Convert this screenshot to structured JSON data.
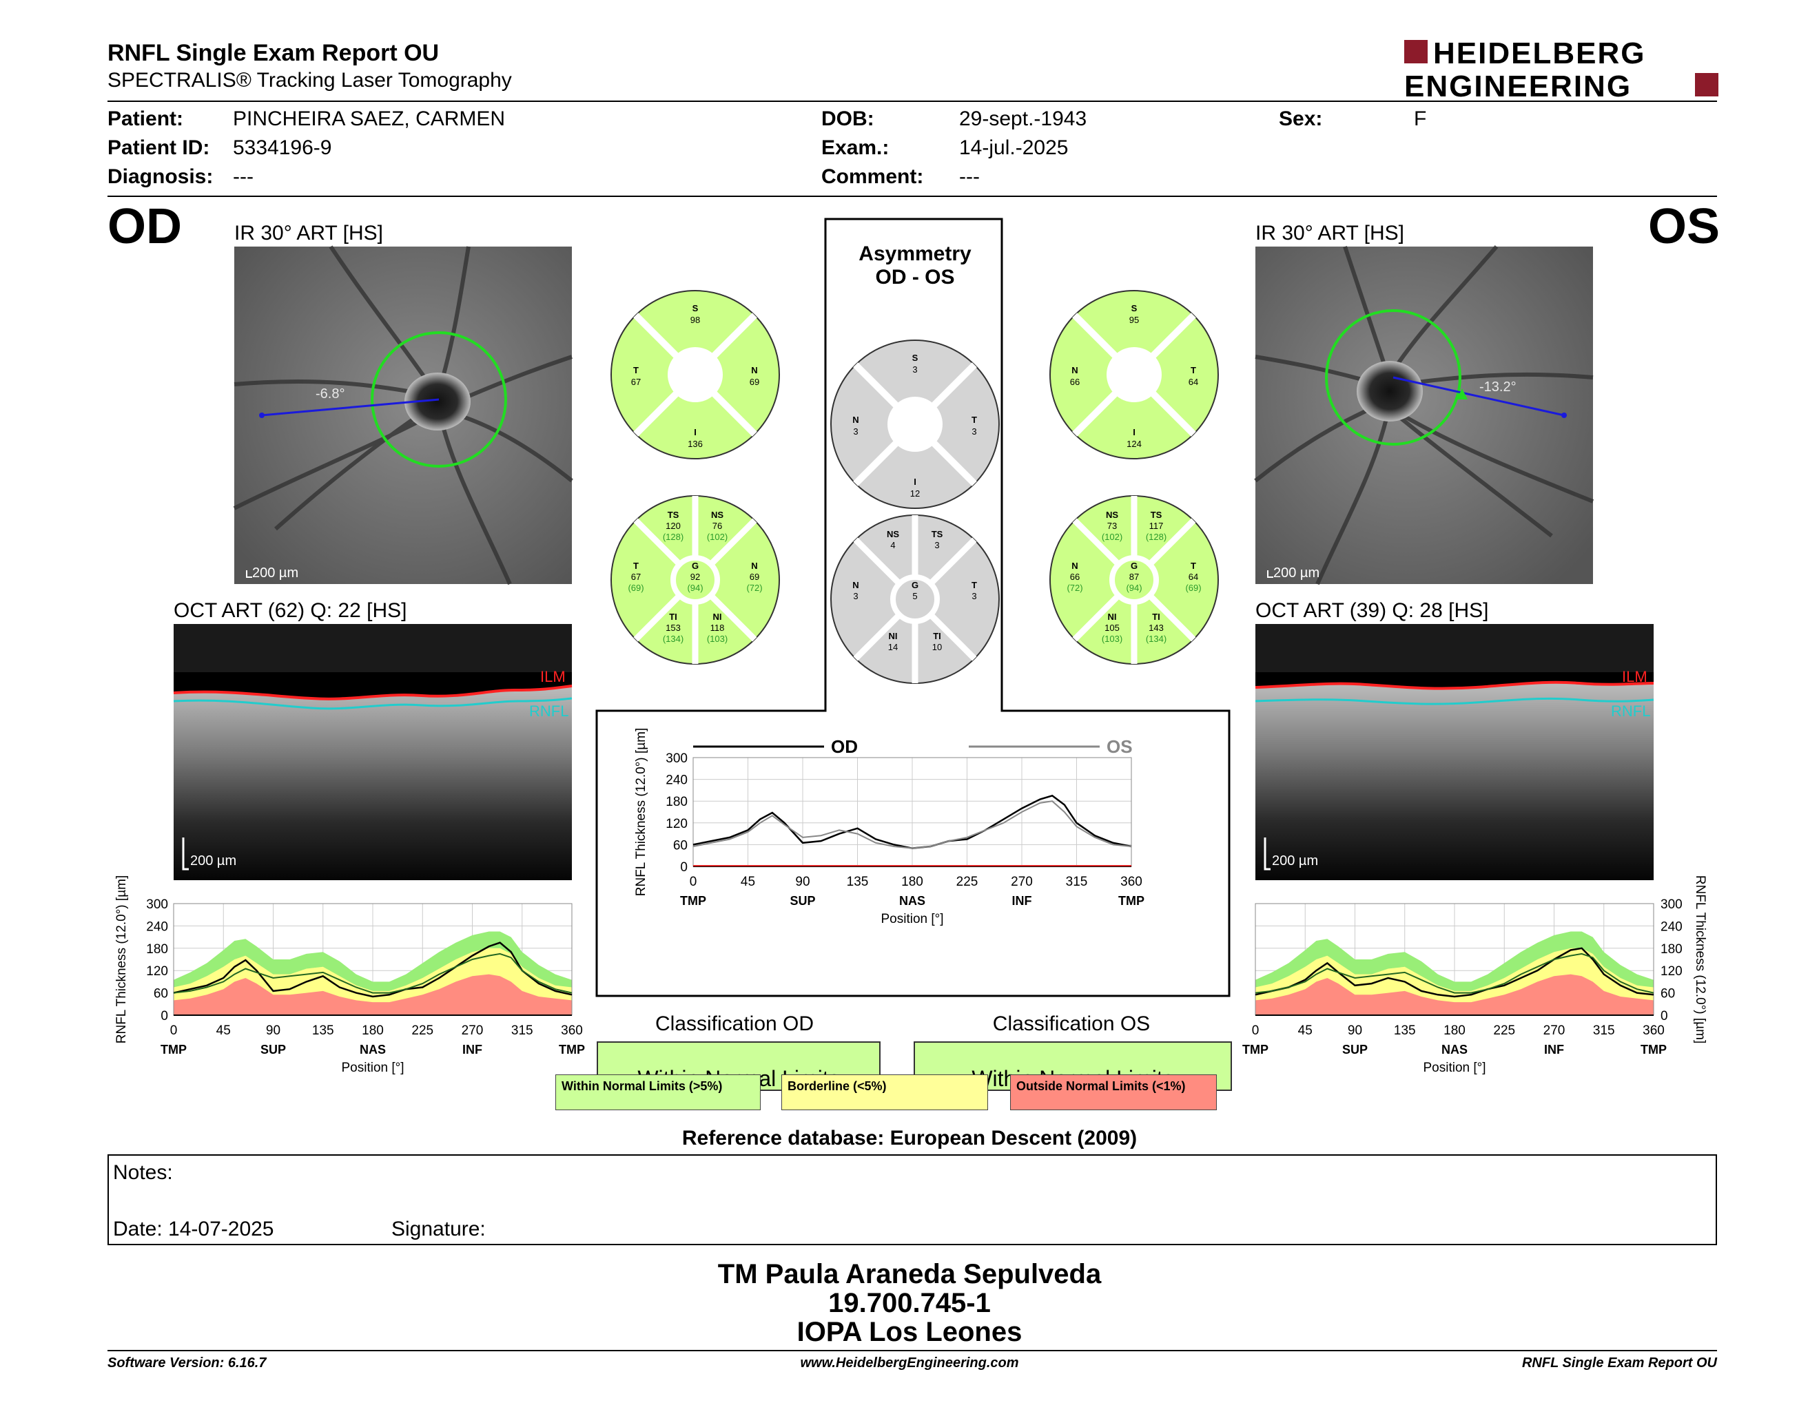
{
  "header": {
    "title": "RNFL Single Exam Report OU",
    "subtitle": "SPECTRALIS® Tracking Laser Tomography",
    "logo_line1": "HEIDELBERG",
    "logo_line2": "ENGINEERING"
  },
  "patient": {
    "name_label": "Patient:",
    "name": "PINCHEIRA SAEZ, CARMEN",
    "id_label": "Patient ID:",
    "id": "5334196-9",
    "diag_label": "Diagnosis:",
    "diag": "---",
    "dob_label": "DOB:",
    "dob": "29-sept.-1943",
    "exam_label": "Exam.:",
    "exam": "14-jul.-2025",
    "comment_label": "Comment:",
    "comment": "---",
    "sex_label": "Sex:",
    "sex": "F"
  },
  "od": {
    "eye": "OD",
    "ir_label": "IR 30° ART [HS]",
    "angle": "-6.8°",
    "scale": "200 µm",
    "oct_label": "OCT ART (62) Q: 22 [HS]",
    "ilm": "ILM",
    "rnfl": "RNFL",
    "oct_scale": "200 µm",
    "sectors6": {
      "S": "98",
      "T": "67",
      "N": "69",
      "I": "136"
    },
    "sectors_detail": {
      "TS": "120",
      "TS_ref": "(128)",
      "NS": "76",
      "NS_ref": "(102)",
      "T": "67",
      "T_ref": "(69)",
      "G": "92",
      "G_ref": "(94)",
      "N": "69",
      "N_ref": "(72)",
      "TI": "153",
      "TI_ref": "(134)",
      "NI": "118",
      "NI_ref": "(103)"
    },
    "classification_title": "Classification OD",
    "classification": "Within Normal Limits"
  },
  "os": {
    "eye": "OS",
    "ir_label": "IR 30° ART [HS]",
    "angle": "-13.2°",
    "scale": "200 µm",
    "oct_label": "OCT ART (39) Q: 28 [HS]",
    "ilm": "ILM",
    "rnfl": "RNFL",
    "oct_scale": "200 µm",
    "sectors6": {
      "S": "95",
      "N": "66",
      "T": "64",
      "I": "124"
    },
    "sectors_detail": {
      "NS": "73",
      "NS_ref": "(102)",
      "TS": "117",
      "TS_ref": "(128)",
      "N": "66",
      "N_ref": "(72)",
      "G": "87",
      "G_ref": "(94)",
      "T": "64",
      "T_ref": "(69)",
      "NI": "105",
      "NI_ref": "(103)",
      "TI": "143",
      "TI_ref": "(134)"
    },
    "classification_title": "Classification OS",
    "classification": "Within Normal Limits"
  },
  "asymmetry": {
    "title1": "Asymmetry",
    "title2": "OD - OS",
    "sectors6": {
      "S": "3",
      "N": "3",
      "T": "3",
      "I": "12"
    },
    "sectors_detail": {
      "NS": "4",
      "TS": "3",
      "N": "3",
      "G": "5",
      "T": "3",
      "NI": "14",
      "TI": "10"
    }
  },
  "chart_data": [
    {
      "type": "line",
      "name": "od-thickness",
      "ylabel": "RNFL Thickness (12.0°) [µm]",
      "xlabel": "Position [°]",
      "xlim": [
        0,
        360
      ],
      "ylim": [
        0,
        300
      ],
      "xticks": [
        "0",
        "45",
        "90",
        "135",
        "180",
        "225",
        "270",
        "315",
        "360"
      ],
      "yticks": [
        "0",
        "60",
        "120",
        "180",
        "240",
        "300"
      ],
      "regions": [
        "TMP",
        "SUP",
        "NAS",
        "INF",
        "TMP"
      ],
      "x": [
        0,
        15,
        30,
        45,
        55,
        65,
        75,
        90,
        105,
        120,
        135,
        150,
        165,
        180,
        195,
        210,
        225,
        240,
        255,
        270,
        285,
        295,
        305,
        315,
        330,
        345,
        360
      ],
      "series": [
        {
          "values": [
            60,
            70,
            80,
            100,
            130,
            148,
            120,
            65,
            70,
            90,
            105,
            75,
            60,
            50,
            55,
            70,
            75,
            100,
            130,
            160,
            185,
            195,
            170,
            120,
            85,
            65,
            55
          ]
        },
        {
          "values": [
            60,
            65,
            75,
            90,
            110,
            125,
            115,
            100,
            105,
            110,
            115,
            95,
            75,
            60,
            60,
            70,
            85,
            110,
            130,
            150,
            160,
            165,
            155,
            120,
            90,
            70,
            60
          ]
        }
      ],
      "bands": {
        "green_upper": [
          95,
          115,
          140,
          175,
          200,
          205,
          185,
          150,
          150,
          165,
          170,
          145,
          110,
          90,
          90,
          110,
          140,
          170,
          195,
          215,
          225,
          225,
          210,
          170,
          135,
          110,
          95
        ],
        "yellow_upper": [
          75,
          85,
          105,
          130,
          150,
          160,
          140,
          110,
          110,
          125,
          130,
          105,
          80,
          65,
          65,
          80,
          100,
          125,
          150,
          170,
          180,
          180,
          165,
          130,
          100,
          80,
          75
        ],
        "red_upper": [
          40,
          45,
          55,
          70,
          90,
          100,
          85,
          55,
          55,
          60,
          65,
          50,
          40,
          35,
          35,
          45,
          55,
          70,
          90,
          105,
          110,
          105,
          90,
          65,
          50,
          45,
          40
        ]
      }
    },
    {
      "type": "line",
      "name": "os-thickness",
      "ylabel": "RNFL Thickness (12.0°) [µm]",
      "xlabel": "Position [°]",
      "xlim": [
        0,
        360
      ],
      "ylim": [
        0,
        300
      ],
      "xticks": [
        "0",
        "45",
        "90",
        "135",
        "180",
        "225",
        "270",
        "315",
        "360"
      ],
      "yticks": [
        "0",
        "60",
        "120",
        "180",
        "240",
        "300"
      ],
      "regions": [
        "TMP",
        "SUP",
        "NAS",
        "INF",
        "TMP"
      ],
      "x": [
        0,
        15,
        30,
        45,
        55,
        65,
        75,
        90,
        105,
        120,
        135,
        150,
        165,
        180,
        195,
        210,
        225,
        240,
        255,
        270,
        285,
        295,
        305,
        315,
        330,
        345,
        360
      ],
      "series": [
        {
          "values": [
            55,
            65,
            75,
            95,
            120,
            140,
            115,
            80,
            85,
            100,
            90,
            65,
            55,
            50,
            55,
            70,
            80,
            100,
            120,
            150,
            175,
            180,
            150,
            110,
            80,
            60,
            55
          ]
        },
        {
          "values": [
            60,
            65,
            75,
            90,
            110,
            125,
            115,
            100,
            105,
            110,
            115,
            95,
            75,
            60,
            60,
            70,
            85,
            110,
            130,
            150,
            160,
            165,
            155,
            120,
            90,
            70,
            60
          ]
        }
      ],
      "bands": {
        "green_upper": [
          95,
          115,
          140,
          175,
          200,
          205,
          185,
          150,
          150,
          165,
          170,
          145,
          110,
          90,
          90,
          110,
          140,
          170,
          195,
          215,
          225,
          225,
          210,
          170,
          135,
          110,
          95
        ],
        "yellow_upper": [
          75,
          85,
          105,
          130,
          150,
          160,
          140,
          110,
          110,
          125,
          130,
          105,
          80,
          65,
          65,
          80,
          100,
          125,
          150,
          170,
          180,
          180,
          165,
          130,
          100,
          80,
          75
        ],
        "red_upper": [
          40,
          45,
          55,
          70,
          90,
          100,
          85,
          55,
          55,
          60,
          65,
          50,
          40,
          35,
          35,
          45,
          55,
          70,
          90,
          105,
          110,
          105,
          90,
          65,
          50,
          45,
          40
        ]
      }
    },
    {
      "type": "line",
      "name": "ou-comparison",
      "ylabel": "RNFL Thickness (12.0°) [µm]",
      "xlabel": "Position [°]",
      "xlim": [
        0,
        360
      ],
      "ylim": [
        0,
        300
      ],
      "xticks": [
        "0",
        "45",
        "90",
        "135",
        "180",
        "225",
        "270",
        "315",
        "360"
      ],
      "yticks": [
        "0",
        "60",
        "120",
        "180",
        "240",
        "300"
      ],
      "regions": [
        "TMP",
        "SUP",
        "NAS",
        "INF",
        "TMP"
      ],
      "legend": [
        "OD",
        "OS"
      ],
      "x": [
        0,
        15,
        30,
        45,
        55,
        65,
        75,
        90,
        105,
        120,
        135,
        150,
        165,
        180,
        195,
        210,
        225,
        240,
        255,
        270,
        285,
        295,
        305,
        315,
        330,
        345,
        360
      ],
      "series": [
        {
          "name": "OD",
          "values": [
            60,
            70,
            80,
            100,
            130,
            148,
            120,
            65,
            70,
            90,
            105,
            75,
            60,
            50,
            55,
            70,
            75,
            100,
            130,
            160,
            185,
            195,
            170,
            120,
            85,
            65,
            55
          ]
        },
        {
          "name": "OS",
          "values": [
            55,
            65,
            75,
            95,
            120,
            140,
            115,
            80,
            85,
            100,
            90,
            65,
            55,
            50,
            55,
            70,
            80,
            100,
            120,
            150,
            175,
            180,
            150,
            110,
            80,
            60,
            55
          ]
        }
      ]
    }
  ],
  "legend": {
    "wnl": "Within Normal Limits (>5%)",
    "bl": "Borderline (<5%)",
    "onl": "Outside Normal Limits (<1%)"
  },
  "reference": "Reference database: European Descent (2009)",
  "notes": {
    "label": "Notes:",
    "date": "Date: 14-07-2025",
    "signature": "Signature:"
  },
  "signer": {
    "line1": "TM Paula Araneda Sepulveda",
    "line2": "19.700.745-1",
    "line3": "IOPA Los Leones"
  },
  "footer": {
    "left": "Software Version: 6.16.7",
    "center": "www.HeidelbergEngineering.com",
    "right": "RNFL Single Exam Report OU"
  },
  "colors": {
    "green": "#ccff99",
    "yellow": "#ffff99",
    "red": "#ff8c80",
    "sector_green": "#ccff88",
    "sector_gray": "#d4d4d4",
    "logo": "#8c1b2a"
  }
}
